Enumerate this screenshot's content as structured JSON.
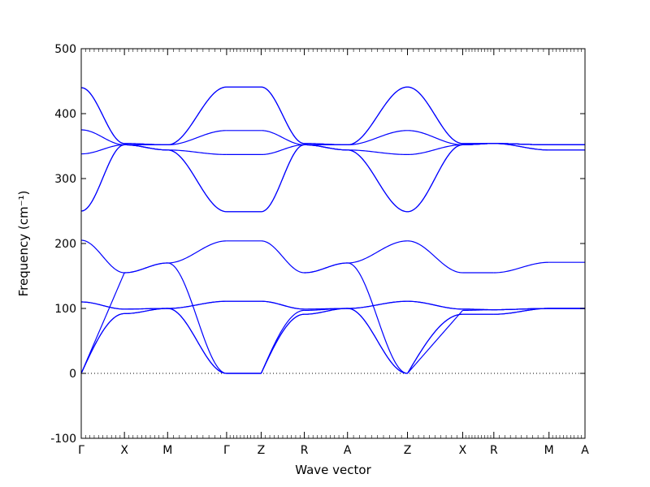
{
  "chart_data": {
    "type": "line",
    "xlabel": "Wave vector",
    "ylabel": "Frequency (cm⁻¹)",
    "ylim": [
      -100,
      500
    ],
    "yticks": [
      -100,
      0,
      100,
      200,
      300,
      400,
      500
    ],
    "grid": false,
    "zero_line": true,
    "line_color": "#0000ff",
    "x_range": [
      0,
      10.5
    ],
    "high_symmetry_points": [
      {
        "label": "Γ",
        "x": 0
      },
      {
        "label": "X",
        "x": 0.9
      },
      {
        "label": "M",
        "x": 1.8
      },
      {
        "label": "Γ",
        "x": 3.03
      },
      {
        "label": "Z",
        "x": 3.75
      },
      {
        "label": "R",
        "x": 4.65
      },
      {
        "label": "A",
        "x": 5.55
      },
      {
        "label": "Z",
        "x": 6.8
      },
      {
        "label": "X",
        "x": 7.95
      },
      {
        "label": "R",
        "x": 8.6
      },
      {
        "label": "M",
        "x": 9.75
      },
      {
        "label": "A",
        "x": 10.5
      }
    ],
    "segments": [
      {
        "from": "Γ",
        "to": "X",
        "bands": [
          [
            0,
            92
          ],
          [
            0,
            92
          ],
          [
            0,
            155
          ],
          [
            110,
            99
          ],
          [
            110,
            99
          ],
          [
            205,
            155
          ],
          [
            250,
            352
          ],
          [
            250,
            352
          ],
          [
            338,
            352
          ],
          [
            375,
            352
          ],
          [
            440,
            354
          ],
          [
            440,
            354
          ]
        ],
        "shapes": [
          "acs",
          "acs",
          "acl",
          "cos",
          "cos",
          "cos",
          "cos",
          "cos",
          "cos",
          "cos",
          "cos",
          "cos"
        ]
      },
      {
        "from": "X",
        "to": "M",
        "bands": [
          [
            92,
            100
          ],
          [
            92,
            100
          ],
          [
            155,
            170
          ],
          [
            99,
            100
          ],
          [
            99,
            100
          ],
          [
            155,
            170
          ],
          [
            352,
            344
          ],
          [
            352,
            344
          ],
          [
            352,
            344
          ],
          [
            352,
            352
          ],
          [
            354,
            352
          ],
          [
            354,
            352
          ]
        ],
        "shapes": [
          "cos",
          "cos",
          "cos",
          "cos",
          "cos",
          "cos",
          "cos",
          "cos",
          "cos",
          "cos",
          "cos",
          "cos"
        ]
      },
      {
        "from": "M",
        "to": "Γ",
        "bands": [
          [
            100,
            0
          ],
          [
            100,
            0
          ],
          [
            170,
            0
          ],
          [
            100,
            111
          ],
          [
            100,
            111
          ],
          [
            170,
            204
          ],
          [
            344,
            249
          ],
          [
            344,
            249
          ],
          [
            344,
            337
          ],
          [
            352,
            374
          ],
          [
            352,
            441
          ],
          [
            352,
            441
          ]
        ],
        "shapes": [
          "cos",
          "cos",
          "cos",
          "cos",
          "cos",
          "cos",
          "cos",
          "cos",
          "cos",
          "cos",
          "cos",
          "cos"
        ]
      },
      {
        "from": "Γ",
        "to": "Z",
        "bands": [
          [
            0,
            0
          ],
          [
            0,
            0
          ],
          [
            0,
            0
          ],
          [
            111,
            111
          ],
          [
            111,
            111
          ],
          [
            204,
            204
          ],
          [
            249,
            249
          ],
          [
            249,
            249
          ],
          [
            337,
            337
          ],
          [
            374,
            374
          ],
          [
            441,
            441
          ],
          [
            441,
            441
          ]
        ],
        "shapes": [
          "flat",
          "flat",
          "flat",
          "flat",
          "flat",
          "flat",
          "flat",
          "flat",
          "flat",
          "flat",
          "flat",
          "flat"
        ]
      },
      {
        "from": "Z",
        "to": "R",
        "bands": [
          [
            0,
            91
          ],
          [
            0,
            91
          ],
          [
            0,
            97
          ],
          [
            111,
            99
          ],
          [
            111,
            99
          ],
          [
            204,
            155
          ],
          [
            249,
            352
          ],
          [
            249,
            352
          ],
          [
            337,
            352
          ],
          [
            374,
            352
          ],
          [
            441,
            354
          ],
          [
            441,
            354
          ]
        ],
        "shapes": [
          "acs",
          "acs",
          "acs",
          "cos",
          "cos",
          "cos",
          "cos",
          "cos",
          "cos",
          "cos",
          "cos",
          "cos"
        ]
      },
      {
        "from": "R",
        "to": "A",
        "bands": [
          [
            91,
            100
          ],
          [
            91,
            100
          ],
          [
            97,
            100
          ],
          [
            99,
            100
          ],
          [
            155,
            170
          ],
          [
            155,
            170
          ],
          [
            352,
            344
          ],
          [
            352,
            344
          ],
          [
            352,
            344
          ],
          [
            352,
            352
          ],
          [
            354,
            352
          ],
          [
            354,
            352
          ]
        ],
        "shapes": [
          "cos",
          "cos",
          "cos",
          "cos",
          "cos",
          "cos",
          "cos",
          "cos",
          "cos",
          "cos",
          "cos",
          "cos"
        ]
      },
      {
        "from": "A",
        "to": "Z",
        "bands": [
          [
            100,
            0
          ],
          [
            100,
            0
          ],
          [
            170,
            0
          ],
          [
            100,
            111
          ],
          [
            100,
            111
          ],
          [
            170,
            204
          ],
          [
            344,
            249
          ],
          [
            344,
            249
          ],
          [
            344,
            337
          ],
          [
            352,
            374
          ],
          [
            352,
            441
          ],
          [
            352,
            441
          ]
        ],
        "shapes": [
          "cos",
          "cos",
          "cos",
          "cos",
          "cos",
          "cos",
          "cos",
          "cos",
          "cos",
          "cos",
          "cos",
          "cos"
        ]
      },
      {
        "from": "Z",
        "to": "X",
        "bands": [
          [
            0,
            91
          ],
          [
            0,
            91
          ],
          [
            0,
            97
          ],
          [
            111,
            99
          ],
          [
            111,
            99
          ],
          [
            204,
            155
          ],
          [
            249,
            352
          ],
          [
            249,
            352
          ],
          [
            337,
            352
          ],
          [
            374,
            352
          ],
          [
            441,
            354
          ],
          [
            441,
            354
          ]
        ],
        "shapes": [
          "acs",
          "acs",
          "acl",
          "cos",
          "cos",
          "cos",
          "cos",
          "cos",
          "cos",
          "cos",
          "cos",
          "cos"
        ]
      },
      {
        "from": "X",
        "to": "R",
        "bands": [
          [
            91,
            91
          ],
          [
            91,
            91
          ],
          [
            97,
            98
          ],
          [
            99,
            98
          ],
          [
            99,
            98
          ],
          [
            155,
            155
          ],
          [
            352,
            354
          ],
          [
            352,
            354
          ],
          [
            352,
            354
          ],
          [
            352,
            354
          ],
          [
            354,
            354
          ],
          [
            354,
            354
          ]
        ],
        "shapes": [
          "flat",
          "flat",
          "cos",
          "cos",
          "cos",
          "flat",
          "cos",
          "cos",
          "cos",
          "cos",
          "flat",
          "flat"
        ]
      },
      {
        "from": "R",
        "to": "M",
        "bands": [
          [
            91,
            100
          ],
          [
            91,
            100
          ],
          [
            98,
            100
          ],
          [
            98,
            100
          ],
          [
            98,
            100
          ],
          [
            155,
            171
          ],
          [
            354,
            344
          ],
          [
            354,
            344
          ],
          [
            354,
            352
          ],
          [
            354,
            352
          ],
          [
            354,
            352
          ],
          [
            354,
            352
          ]
        ],
        "shapes": [
          "cos",
          "cos",
          "cos",
          "cos",
          "cos",
          "cos",
          "cos",
          "cos",
          "cos",
          "cos",
          "cos",
          "cos"
        ]
      },
      {
        "from": "M",
        "to": "A",
        "bands": [
          [
            100,
            100
          ],
          [
            100,
            100
          ],
          [
            100,
            100
          ],
          [
            100,
            100
          ],
          [
            100,
            100
          ],
          [
            171,
            171
          ],
          [
            344,
            344
          ],
          [
            344,
            344
          ],
          [
            352,
            352
          ],
          [
            352,
            352
          ],
          [
            352,
            352
          ],
          [
            352,
            352
          ]
        ],
        "shapes": [
          "flat",
          "flat",
          "flat",
          "flat",
          "flat",
          "flat",
          "flat",
          "flat",
          "flat",
          "flat",
          "flat",
          "flat"
        ]
      }
    ]
  }
}
